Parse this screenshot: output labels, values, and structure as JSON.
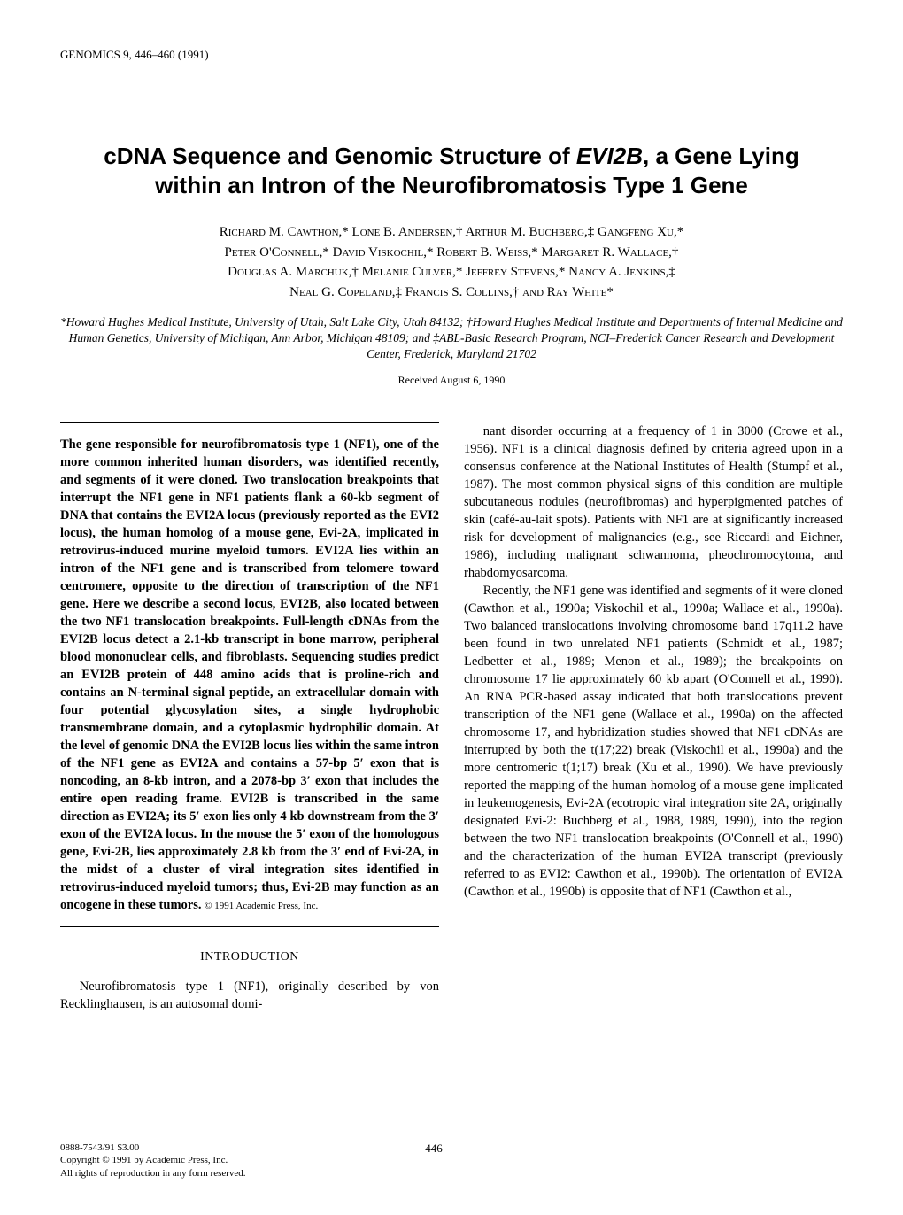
{
  "journal_header": "GENOMICS 9, 446–460 (1991)",
  "title_line1": "cDNA Sequence and Genomic Structure of EVI2B, a Gene Lying",
  "title_line2": "within an Intron of the Neurofibromatosis Type 1 Gene",
  "authors_line1": "Richard M. Cawthon,* Lone B. Andersen,† Arthur M. Buchberg,‡ Gangfeng Xu,*",
  "authors_line2": "Peter O'Connell,* David Viskochil,* Robert B. Weiss,* Margaret R. Wallace,†",
  "authors_line3": "Douglas A. Marchuk,† Melanie Culver,* Jeffrey Stevens,* Nancy A. Jenkins,‡",
  "authors_line4": "Neal G. Copeland,‡ Francis S. Collins,† and Ray White*",
  "affiliations": "*Howard Hughes Medical Institute, University of Utah, Salt Lake City, Utah 84132; †Howard Hughes Medical Institute and Departments of Internal Medicine and Human Genetics, University of Michigan, Ann Arbor, Michigan 48109; and ‡ABL-Basic Research Program, NCI–Frederick Cancer Research and Development Center, Frederick, Maryland 21702",
  "received": "Received August 6, 1990",
  "abstract": "The gene responsible for neurofibromatosis type 1 (NF1), one of the more common inherited human disorders, was identified recently, and segments of it were cloned. Two translocation breakpoints that interrupt the NF1 gene in NF1 patients flank a 60-kb segment of DNA that contains the EVI2A locus (previously reported as the EVI2 locus), the human homolog of a mouse gene, Evi-2A, implicated in retrovirus-induced murine myeloid tumors. EVI2A lies within an intron of the NF1 gene and is transcribed from telomere toward centromere, opposite to the direction of transcription of the NF1 gene. Here we describe a second locus, EVI2B, also located between the two NF1 translocation breakpoints. Full-length cDNAs from the EVI2B locus detect a 2.1-kb transcript in bone marrow, peripheral blood mononuclear cells, and fibroblasts. Sequencing studies predict an EVI2B protein of 448 amino acids that is proline-rich and contains an N-terminal signal peptide, an extracellular domain with four potential glycosylation sites, a single hydrophobic transmembrane domain, and a cytoplasmic hydrophilic domain. At the level of genomic DNA the EVI2B locus lies within the same intron of the NF1 gene as EVI2A and contains a 57-bp 5′ exon that is noncoding, an 8-kb intron, and a 2078-bp 3′ exon that includes the entire open reading frame. EVI2B is transcribed in the same direction as EVI2A; its 5′ exon lies only 4 kb downstream from the 3′ exon of the EVI2A locus. In the mouse the 5′ exon of the homologous gene, Evi-2B, lies approximately 2.8 kb from the 3′ end of Evi-2A, in the midst of a cluster of viral integration sites identified in retrovirus-induced myeloid tumors; thus, Evi-2B may function as an oncogene in these tumors.",
  "abstract_copyright": "© 1991 Academic Press, Inc.",
  "section_intro": "INTRODUCTION",
  "intro_p1": "Neurofibromatosis type 1 (NF1), originally described by von Recklinghausen, is an autosomal domi-",
  "col2_p1": "nant disorder occurring at a frequency of 1 in 3000 (Crowe et al., 1956). NF1 is a clinical diagnosis defined by criteria agreed upon in a consensus conference at the National Institutes of Health (Stumpf et al., 1987). The most common physical signs of this condition are multiple subcutaneous nodules (neurofibromas) and hyperpigmented patches of skin (café-au-lait spots). Patients with NF1 are at significantly increased risk for development of malignancies (e.g., see Riccardi and Eichner, 1986), including malignant schwannoma, pheochromocytoma, and rhabdomyosarcoma.",
  "col2_p2": "Recently, the NF1 gene was identified and segments of it were cloned (Cawthon et al., 1990a; Viskochil et al., 1990a; Wallace et al., 1990a). Two balanced translocations involving chromosome band 17q11.2 have been found in two unrelated NF1 patients (Schmidt et al., 1987; Ledbetter et al., 1989; Menon et al., 1989); the breakpoints on chromosome 17 lie approximately 60 kb apart (O'Connell et al., 1990). An RNA PCR-based assay indicated that both translocations prevent transcription of the NF1 gene (Wallace et al., 1990a) on the affected chromosome 17, and hybridization studies showed that NF1 cDNAs are interrupted by both the t(17;22) break (Viskochil et al., 1990a) and the more centromeric t(1;17) break (Xu et al., 1990). We have previously reported the mapping of the human homolog of a mouse gene implicated in leukemogenesis, Evi-2A (ecotropic viral integration site 2A, originally designated Evi-2: Buchberg et al., 1988, 1989, 1990), into the region between the two NF1 translocation breakpoints (O'Connell et al., 1990) and the characterization of the human EVI2A transcript (previously referred to as EVI2: Cawthon et al., 1990b). The orientation of EVI2A (Cawthon et al., 1990b) is opposite that of NF1 (Cawthon et al.,",
  "footer_issn": "0888-7543/91 $3.00",
  "footer_copyright": "Copyright © 1991 by Academic Press, Inc.",
  "footer_rights": "All rights of reproduction in any form reserved.",
  "page_number": "446"
}
